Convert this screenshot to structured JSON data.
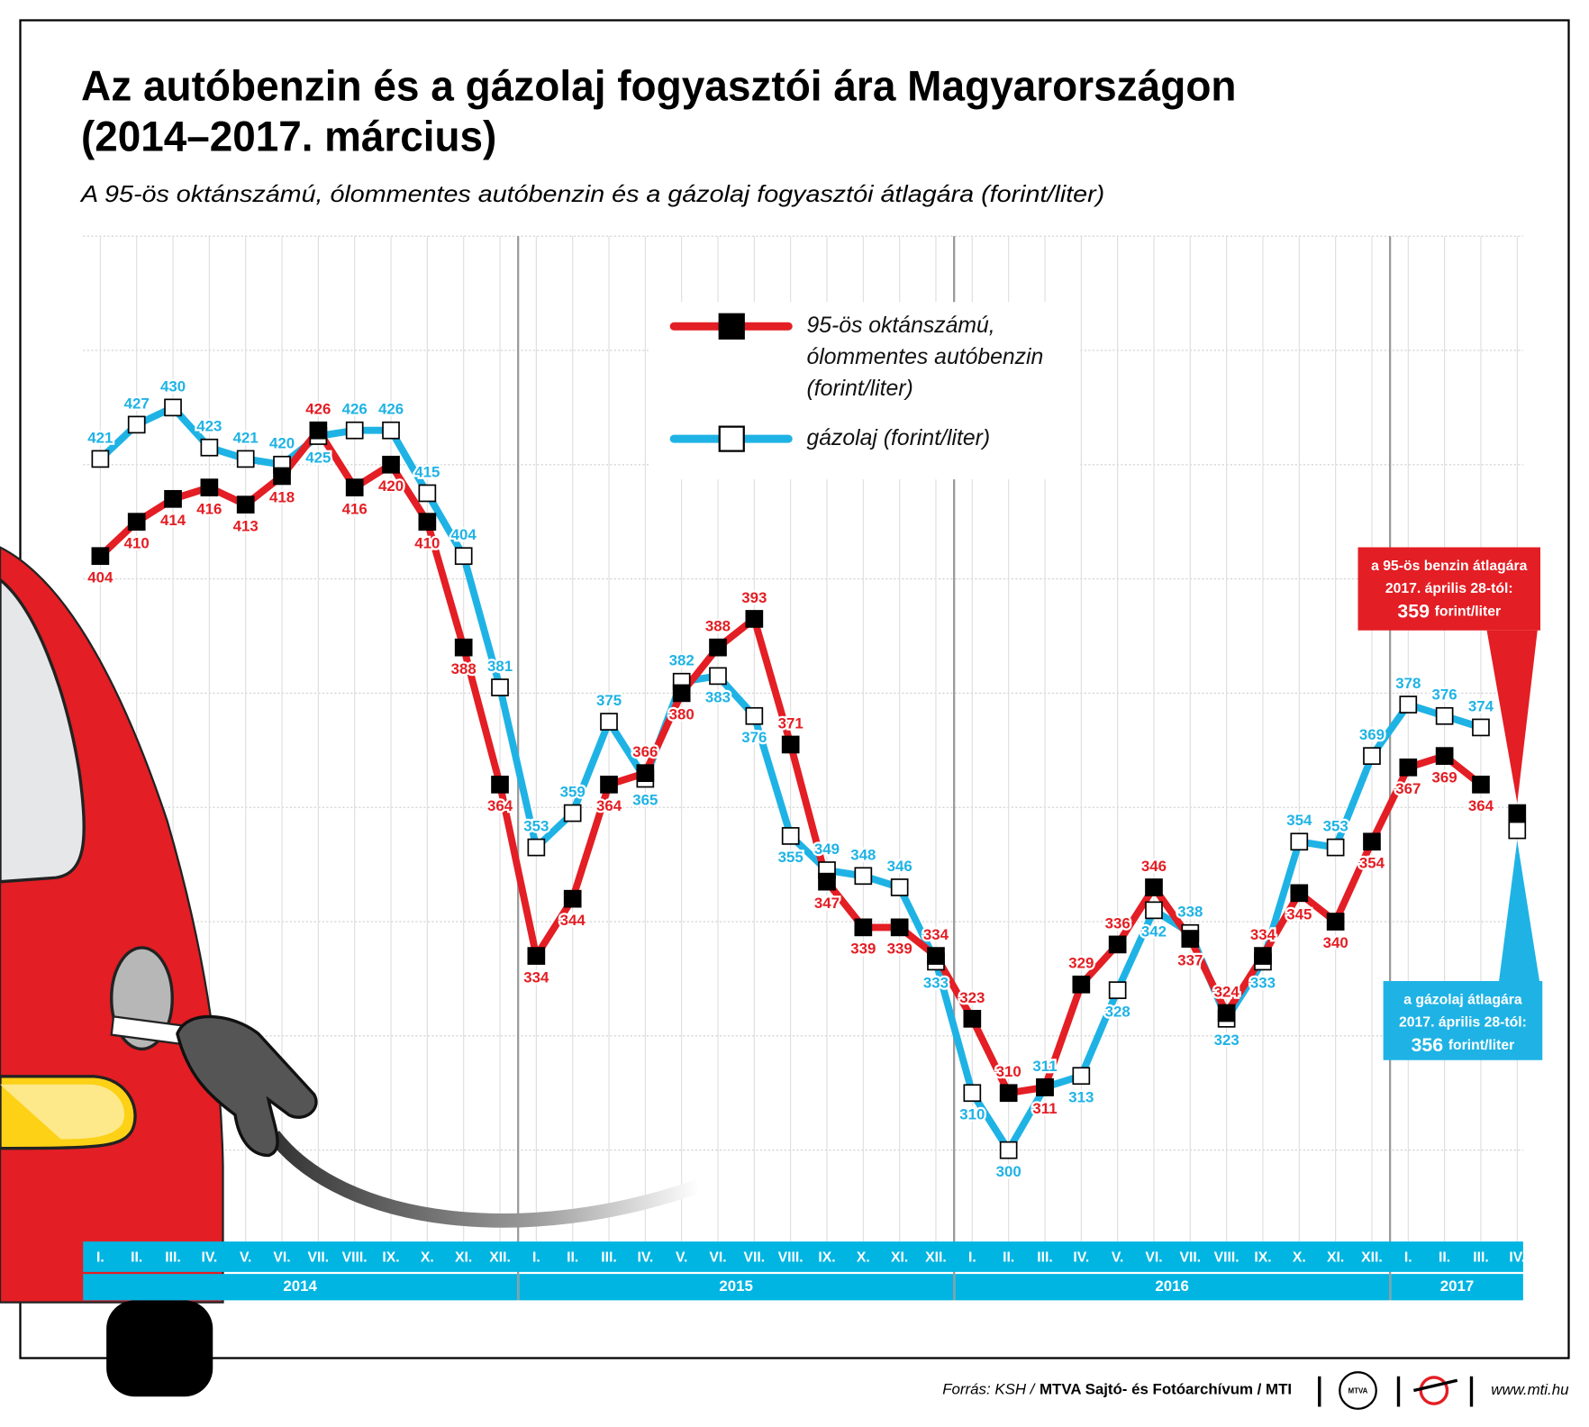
{
  "chart_data": {
    "type": "line",
    "title": [
      "Az autóbenzin és a gázolaj fogyasztói ára Magyarországon",
      "(2014–2017. március)"
    ],
    "subtitle": "A 95-ös oktánszámú, ólommentes autóbenzin és a gázolaj fogyasztói átlagára (forint/liter)",
    "categories": [
      "I.",
      "II.",
      "III.",
      "IV.",
      "V.",
      "VI.",
      "VII.",
      "VIII.",
      "IX.",
      "X.",
      "XI.",
      "XII.",
      "I.",
      "II.",
      "III.",
      "IV.",
      "V.",
      "VI.",
      "VII.",
      "VIII.",
      "IX.",
      "X.",
      "XI.",
      "XII.",
      "I.",
      "II.",
      "III.",
      "IV.",
      "V.",
      "VI.",
      "VII.",
      "VIII.",
      "IX.",
      "X.",
      "XI.",
      "XII.",
      "I.",
      "II.",
      "III.",
      "IV."
    ],
    "years": [
      "2014",
      "2015",
      "2016",
      "2017"
    ],
    "series": [
      {
        "name": "95-ös oktánszámú, ólommentes autóbenzin (forint/liter)",
        "color": "#e31e24",
        "marker": "#000000",
        "values": [
          404,
          410,
          414,
          416,
          413,
          418,
          426,
          416,
          420,
          410,
          388,
          364,
          334,
          344,
          364,
          366,
          380,
          388,
          393,
          371,
          347,
          339,
          339,
          334,
          323,
          310,
          311,
          329,
          336,
          346,
          337,
          324,
          334,
          345,
          340,
          354,
          367,
          369,
          364,
          null
        ]
      },
      {
        "name": "gázolaj (forint/liter)",
        "color": "#1fb3e5",
        "marker": "#ffffff",
        "values": [
          421,
          427,
          430,
          423,
          421,
          420,
          425,
          426,
          426,
          415,
          404,
          381,
          353,
          359,
          375,
          365,
          382,
          383,
          376,
          355,
          349,
          348,
          346,
          333,
          310,
          300,
          311,
          313,
          328,
          342,
          338,
          323,
          333,
          354,
          353,
          369,
          378,
          376,
          374,
          null
        ]
      }
    ],
    "annotations": [
      {
        "lines": [
          "a 95-ös benzin átlagára",
          "2017. április 28-tól:"
        ],
        "value": 359,
        "unit": "forint/liter",
        "color": "#e31e24"
      },
      {
        "lines": [
          "a gázolaj átlagára",
          "2017. április 28-tól:"
        ],
        "value": 356,
        "unit": "forint/liter",
        "color": "#1fb3e5"
      }
    ],
    "ylim": [
      284,
      460
    ],
    "yticks": [
      300,
      320,
      340,
      360,
      380,
      400,
      420,
      440,
      460
    ],
    "grid": true
  },
  "footer": {
    "source": "Forrás: KSH /",
    "publisher": "MTVA Sajtó- és Fotóarchívum / MTI",
    "logo": "MTVA",
    "website": "www.mti.hu"
  }
}
